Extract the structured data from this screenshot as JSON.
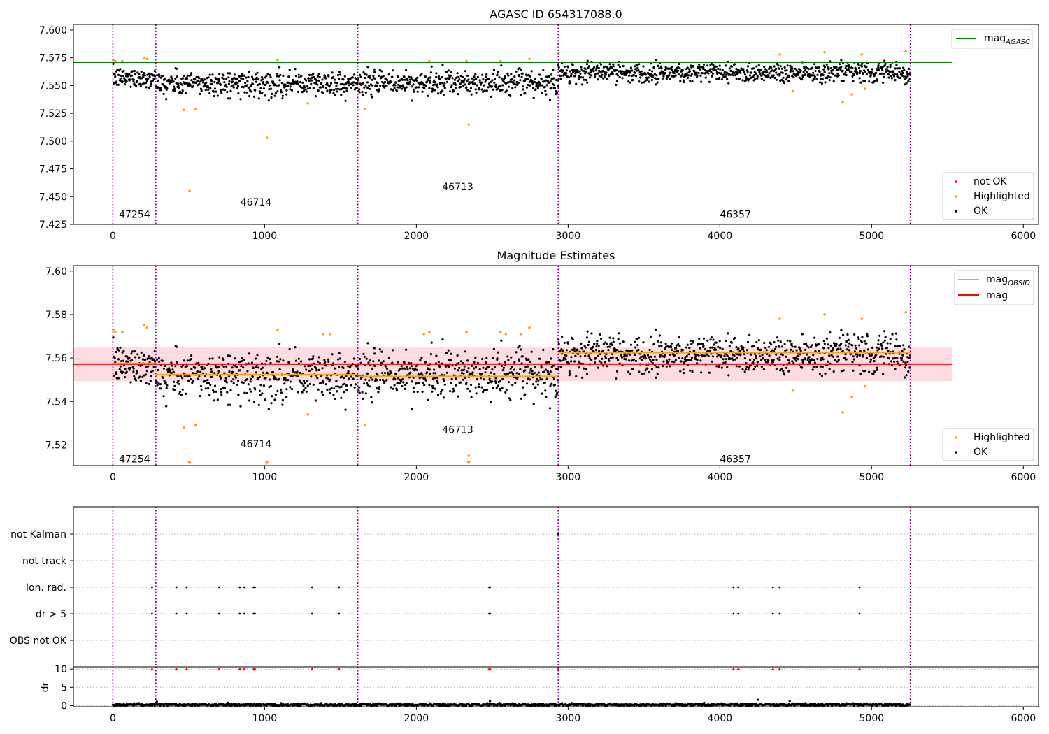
{
  "colors": {
    "ok": "#000000",
    "highlighted": "#ffa500",
    "not_ok": "#ff0000",
    "mag_agasc": "#008000",
    "mag_obsid": "#ffa500",
    "mag": "#ff0000",
    "mag_band": "#ffc0cb",
    "obsid_divider": "#800080",
    "flag_grid": "#b0b0b0"
  },
  "chart_data": [
    {
      "id": "top",
      "type": "scatter",
      "title": "AGASC ID 654317088.0",
      "xlim": [
        -260,
        6100
      ],
      "ylim": [
        7.425,
        7.605
      ],
      "xticks": [
        0,
        1000,
        2000,
        3000,
        4000,
        5000,
        6000
      ],
      "xtick_labels": [
        "0",
        "1000",
        "2000",
        "3000",
        "4000",
        "5000",
        "6000"
      ],
      "yticks": [
        7.425,
        7.45,
        7.475,
        7.5,
        7.525,
        7.55,
        7.575,
        7.6
      ],
      "ytick_labels": [
        "7.425",
        "7.450",
        "7.475",
        "7.500",
        "7.525",
        "7.550",
        "7.575",
        "7.600"
      ],
      "grid": false,
      "obsid_dividers": [
        0,
        283,
        1614,
        2935,
        5255
      ],
      "obsid_labels": [
        {
          "text": "47254",
          "x": 40,
          "y": 7.434
        },
        {
          "text": "46714",
          "x": 840,
          "y": 7.445
        },
        {
          "text": "46713",
          "x": 2170,
          "y": 7.459
        },
        {
          "text": "46357",
          "x": 4000,
          "y": 7.434
        }
      ],
      "reference_lines": [
        {
          "name": "mag$_{AGASC}$",
          "y": 7.571,
          "x": [
            -260,
            5530
          ],
          "color": "#008000"
        }
      ],
      "segments": [
        {
          "x0": 0,
          "x1": 283,
          "mean": 7.557,
          "sd": 0.0045
        },
        {
          "x0": 283,
          "x1": 1614,
          "mean": 7.552,
          "sd": 0.0055
        },
        {
          "x0": 1614,
          "x1": 2935,
          "mean": 7.552,
          "sd": 0.0055
        },
        {
          "x0": 2935,
          "x1": 5255,
          "mean": 7.562,
          "sd": 0.0045
        }
      ],
      "highlighted_points": [
        {
          "x": 3,
          "y": 7.573
        },
        {
          "x": 15,
          "y": 7.572
        },
        {
          "x": 62,
          "y": 7.572
        },
        {
          "x": 205,
          "y": 7.575
        },
        {
          "x": 225,
          "y": 7.574
        },
        {
          "x": 468,
          "y": 7.528
        },
        {
          "x": 505,
          "y": 7.455
        },
        {
          "x": 545,
          "y": 7.529
        },
        {
          "x": 1015,
          "y": 7.503
        },
        {
          "x": 1085,
          "y": 7.573
        },
        {
          "x": 1285,
          "y": 7.534
        },
        {
          "x": 1660,
          "y": 7.529
        },
        {
          "x": 2085,
          "y": 7.572
        },
        {
          "x": 2330,
          "y": 7.572
        },
        {
          "x": 2345,
          "y": 7.515
        },
        {
          "x": 2555,
          "y": 7.572
        },
        {
          "x": 2745,
          "y": 7.574
        },
        {
          "x": 4395,
          "y": 7.578
        },
        {
          "x": 4480,
          "y": 7.545
        },
        {
          "x": 4690,
          "y": 7.58
        },
        {
          "x": 4810,
          "y": 7.535
        },
        {
          "x": 4870,
          "y": 7.542
        },
        {
          "x": 4935,
          "y": 7.578
        },
        {
          "x": 4955,
          "y": 7.547
        },
        {
          "x": 5225,
          "y": 7.581
        }
      ],
      "legends": [
        {
          "position": "upper-right",
          "entries": [
            {
              "label": "mag$_{AGASC}$",
              "marker": "line",
              "color": "#008000"
            }
          ]
        },
        {
          "position": "lower-right",
          "entries": [
            {
              "label": "not OK",
              "marker": "dot",
              "color": "#ff0000"
            },
            {
              "label": "Highlighted",
              "marker": "dot",
              "color": "#ffa500"
            },
            {
              "label": "OK",
              "marker": "dot",
              "color": "#000000"
            }
          ]
        }
      ]
    },
    {
      "id": "middle",
      "type": "scatter",
      "title": "Magnitude Estimates",
      "xlim": [
        -260,
        6100
      ],
      "ylim": [
        7.5105,
        7.6025
      ],
      "xticks": [
        0,
        1000,
        2000,
        3000,
        4000,
        5000,
        6000
      ],
      "xtick_labels": [
        "0",
        "1000",
        "2000",
        "3000",
        "4000",
        "5000",
        "6000"
      ],
      "yticks": [
        7.52,
        7.54,
        7.56,
        7.58,
        7.6
      ],
      "ytick_labels": [
        "7.52",
        "7.54",
        "7.56",
        "7.58",
        "7.60"
      ],
      "grid": false,
      "obsid_dividers": [
        0,
        283,
        1614,
        2935,
        5255
      ],
      "obsid_labels": [
        {
          "text": "47254",
          "x": 40,
          "y": 7.5135
        },
        {
          "text": "46714",
          "x": 840,
          "y": 7.5205
        },
        {
          "text": "46713",
          "x": 2170,
          "y": 7.527
        },
        {
          "text": "46357",
          "x": 4000,
          "y": 7.5135
        }
      ],
      "mag": {
        "value": 7.5572,
        "band": [
          7.5493,
          7.5652
        ],
        "x": [
          -260,
          5530
        ]
      },
      "mag_obsid": [
        {
          "x0": 0,
          "x1": 283,
          "value": 7.5575
        },
        {
          "x0": 283,
          "x1": 1614,
          "value": 7.5523
        },
        {
          "x0": 1614,
          "x1": 2935,
          "value": 7.5515
        },
        {
          "x0": 2935,
          "x1": 5255,
          "value": 7.5625
        }
      ],
      "segments": [
        {
          "x0": 0,
          "x1": 283,
          "mean": 7.557,
          "sd": 0.0045
        },
        {
          "x0": 283,
          "x1": 1614,
          "mean": 7.552,
          "sd": 0.0055
        },
        {
          "x0": 1614,
          "x1": 2935,
          "mean": 7.552,
          "sd": 0.0055
        },
        {
          "x0": 2935,
          "x1": 5255,
          "mean": 7.562,
          "sd": 0.0045
        }
      ],
      "highlighted_points": [
        {
          "x": 3,
          "y": 7.573
        },
        {
          "x": 15,
          "y": 7.572
        },
        {
          "x": 62,
          "y": 7.572
        },
        {
          "x": 205,
          "y": 7.575
        },
        {
          "x": 225,
          "y": 7.574
        },
        {
          "x": 468,
          "y": 7.528
        },
        {
          "x": 545,
          "y": 7.529
        },
        {
          "x": 1085,
          "y": 7.573
        },
        {
          "x": 1285,
          "y": 7.534
        },
        {
          "x": 1385,
          "y": 7.571
        },
        {
          "x": 1430,
          "y": 7.571
        },
        {
          "x": 1660,
          "y": 7.529
        },
        {
          "x": 2050,
          "y": 7.571
        },
        {
          "x": 2085,
          "y": 7.572
        },
        {
          "x": 2330,
          "y": 7.572
        },
        {
          "x": 2345,
          "y": 7.515
        },
        {
          "x": 2555,
          "y": 7.572
        },
        {
          "x": 2590,
          "y": 7.571
        },
        {
          "x": 2690,
          "y": 7.571
        },
        {
          "x": 2745,
          "y": 7.574
        },
        {
          "x": 4395,
          "y": 7.578
        },
        {
          "x": 4480,
          "y": 7.545
        },
        {
          "x": 4690,
          "y": 7.58
        },
        {
          "x": 4810,
          "y": 7.535
        },
        {
          "x": 4870,
          "y": 7.542
        },
        {
          "x": 4935,
          "y": 7.578
        },
        {
          "x": 4955,
          "y": 7.547
        },
        {
          "x": 5225,
          "y": 7.581
        }
      ],
      "offscale_markers": [
        {
          "x": 505
        },
        {
          "x": 1015
        },
        {
          "x": 2345
        }
      ],
      "legends": [
        {
          "position": "upper-right",
          "entries": [
            {
              "label": "mag$_{OBSID}$",
              "marker": "line",
              "color": "#ffa500"
            },
            {
              "label": "mag",
              "marker": "line",
              "color": "#ff0000"
            }
          ]
        },
        {
          "position": "lower-right",
          "entries": [
            {
              "label": "Highlighted",
              "marker": "dot",
              "color": "#ffa500"
            },
            {
              "label": "OK",
              "marker": "dot",
              "color": "#000000"
            }
          ]
        }
      ]
    },
    {
      "id": "flags",
      "type": "scatter",
      "xlim": [
        -260,
        6100
      ],
      "categories": [
        "not Kalman",
        "not track",
        "Ion. rad.",
        "dr > 5",
        "OBS not OK"
      ],
      "obsid_dividers": [
        0,
        283,
        1614,
        2935,
        5255
      ],
      "flag_points": {
        "not Kalman": [
          2935
        ],
        "not track": [],
        "Ion. rad.": [
          258,
          418,
          486,
          700,
          836,
          866,
          928,
          936,
          1313,
          1490,
          2480,
          2485,
          4090,
          4122,
          4350,
          4394,
          4920
        ],
        "dr > 5": [
          258,
          418,
          486,
          700,
          836,
          866,
          928,
          936,
          1313,
          1490,
          2480,
          2485,
          4090,
          4122,
          4350,
          4394,
          4920
        ],
        "OBS not OK": []
      }
    },
    {
      "id": "dr",
      "type": "scatter",
      "ylabel": "dr",
      "xlim": [
        -260,
        6100
      ],
      "ylim": [
        -0.3,
        10.6
      ],
      "xticks": [
        0,
        1000,
        2000,
        3000,
        4000,
        5000,
        6000
      ],
      "xtick_labels": [
        "0",
        "1000",
        "2000",
        "3000",
        "4000",
        "5000",
        "6000"
      ],
      "yticks": [
        0,
        5,
        10
      ],
      "ytick_labels": [
        "0",
        "5",
        "10"
      ],
      "obsid_dividers": [
        0,
        283,
        1614,
        2935,
        5255
      ],
      "over_limit_markers": [
        258,
        418,
        486,
        700,
        836,
        866,
        928,
        936,
        1313,
        1490,
        2480,
        2485,
        2935,
        4090,
        4122,
        4350,
        4394,
        4920
      ],
      "spikes": [
        {
          "x": 2485,
          "y": 1.2
        },
        {
          "x": 4250,
          "y": 1.6
        },
        {
          "x": 4460,
          "y": 1.3
        },
        {
          "x": 290,
          "y": 1.1
        }
      ],
      "n_points": 5255
    }
  ]
}
